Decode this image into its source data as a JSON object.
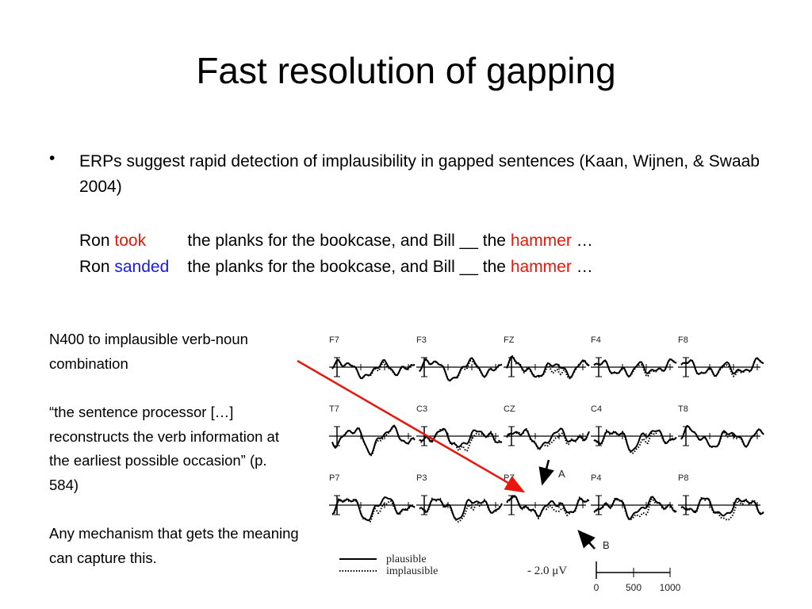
{
  "title": "Fast resolution of gapping",
  "bullet": {
    "text": "ERPs suggest rapid detection of implausibility in gapped sentences (Kaan, Wijnen, & Swaab 2004)"
  },
  "sentences": [
    [
      {
        "text": "Ron"
      },
      {
        "text": "took",
        "color": "#e8160c"
      },
      {
        "text": "the planks for the bookcase, and Bill __ the"
      },
      {
        "text": "hammer",
        "color": "#e8160c"
      },
      {
        "text": "…"
      }
    ],
    [
      {
        "text": "Ron"
      },
      {
        "text": "sanded",
        "color": "#1a1ae6"
      },
      {
        "text": "the planks for the bookcase, and Bill __ the"
      },
      {
        "text": "hammer",
        "color": "#e8160c"
      },
      {
        "text": "…"
      }
    ]
  ],
  "notes": [
    "N400 to implausible verb-noun combination",
    "“the sentence processor […] reconstructs the verb information at the earliest possible occasion” (p. 584)",
    "Any mechanism that gets the meaning can capture this."
  ],
  "figure": {
    "electrodes": [
      [
        "F7",
        "F3",
        "FZ",
        "F4",
        "F8"
      ],
      [
        "T7",
        "C3",
        "CZ",
        "C4",
        "T8"
      ],
      [
        "P7",
        "P3",
        "PZ",
        "P4",
        "P8"
      ]
    ],
    "legend": [
      "plausible",
      "implausible"
    ],
    "arrows": [
      "A",
      "B"
    ],
    "amplitude_scale": "- 2.0  μV",
    "time_ticks": [
      0,
      500,
      1000
    ]
  }
}
